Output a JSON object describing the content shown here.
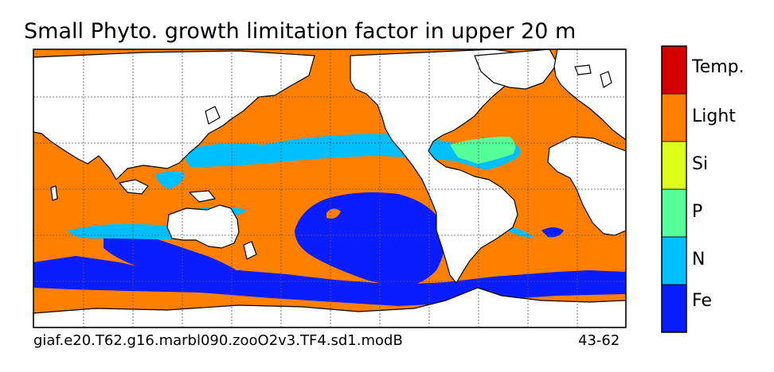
{
  "title": "Small Phyto. growth limitation factor in upper 20 m",
  "caption": {
    "run_name": "giaf.e20.T62.g16.marbl090.zooO2v3.TF4.sd1.modB",
    "years": "43-62"
  },
  "legend": {
    "categories": [
      {
        "label": "Fe",
        "color": "#0a1dff"
      },
      {
        "label": "N",
        "color": "#00bfff"
      },
      {
        "label": "P",
        "color": "#55ff99"
      },
      {
        "label": "Si",
        "color": "#ddff1a"
      },
      {
        "label": "Light",
        "color": "#ff8000"
      },
      {
        "label": "Temp.",
        "color": "#d40000"
      }
    ]
  },
  "colors": {
    "land": "#ffffff",
    "coastline": "#000000",
    "gridline": "#555555"
  }
}
